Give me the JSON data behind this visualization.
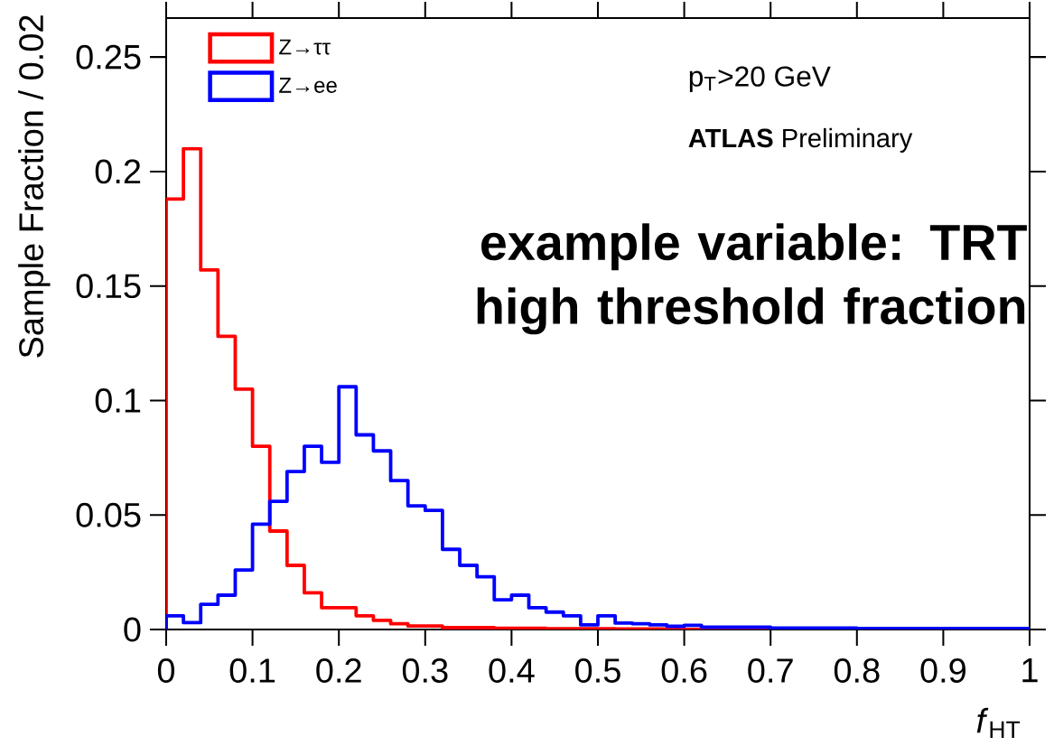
{
  "chart_data": {
    "type": "histogram",
    "xlabel": "*f*$_{HT}$",
    "ylabel": "Sample Fraction / 0.02",
    "bins": [
      0,
      0.02,
      0.04,
      0.06,
      0.08,
      0.1,
      0.12,
      0.14,
      0.16,
      0.18,
      0.2,
      0.22,
      0.24,
      0.26,
      0.28,
      0.3,
      0.32,
      0.34,
      0.36,
      0.38,
      0.4,
      0.42,
      0.44,
      0.46,
      0.48,
      0.5,
      0.52,
      0.54,
      0.56,
      0.58,
      0.6,
      0.62,
      0.64,
      0.66,
      0.68,
      0.7,
      0.72,
      0.74,
      0.76,
      0.78,
      0.8,
      0.82,
      0.84,
      0.86,
      0.88,
      0.9,
      0.92,
      0.94,
      0.96,
      0.98,
      1
    ],
    "series": [
      {
        "name": "Z→ττ",
        "color": "#ff0000",
        "values": [
          0.188,
          0.21,
          0.157,
          0.128,
          0.105,
          0.08,
          0.043,
          0.028,
          0.016,
          0.0095,
          0.0095,
          0.006,
          0.004,
          0.0025,
          0.0015,
          0.0015,
          0.0008,
          0.0008,
          0.0008,
          0.0005,
          0.0005,
          0.0005,
          0.0003,
          0.0003,
          0.0003,
          0.0003,
          0.0002,
          0.0002,
          0.0002,
          0.0002,
          0,
          0,
          0,
          0,
          0,
          0,
          0,
          0,
          0,
          0,
          0,
          0,
          0,
          0,
          0,
          0,
          0,
          0,
          0,
          0
        ]
      },
      {
        "name": "Z→ee",
        "color": "#0000ff",
        "values": [
          0.006,
          0.003,
          0.011,
          0.015,
          0.026,
          0.046,
          0.056,
          0.069,
          0.08,
          0.073,
          0.106,
          0.085,
          0.078,
          0.065,
          0.054,
          0.052,
          0.035,
          0.028,
          0.023,
          0.013,
          0.015,
          0.0095,
          0.0076,
          0.006,
          0.002,
          0.006,
          0.0028,
          0.0025,
          0.002,
          0.0014,
          0.0018,
          0.001,
          0.001,
          0.001,
          0.001,
          0.0006,
          0.0006,
          0.0006,
          0.0006,
          0.0006,
          0.0004,
          0.0004,
          0.0004,
          0.0004,
          0.0004,
          0.0004,
          0.0004,
          0.0004,
          0.0004,
          0.0004
        ]
      }
    ],
    "xlim": [
      0,
      1
    ],
    "ylim": [
      0,
      0.267
    ],
    "xticks": [
      0,
      0.1,
      0.2,
      0.3,
      0.4,
      0.5,
      0.6,
      0.7,
      0.8,
      0.9,
      1
    ],
    "yticks": [
      0,
      0.05,
      0.1,
      0.15,
      0.2,
      0.25
    ],
    "legend": "top left",
    "annotations": [
      "p$_{T}$>20 GeV",
      "**ATLAS** Preliminary",
      "example variable: TRT high threshold fraction"
    ]
  }
}
